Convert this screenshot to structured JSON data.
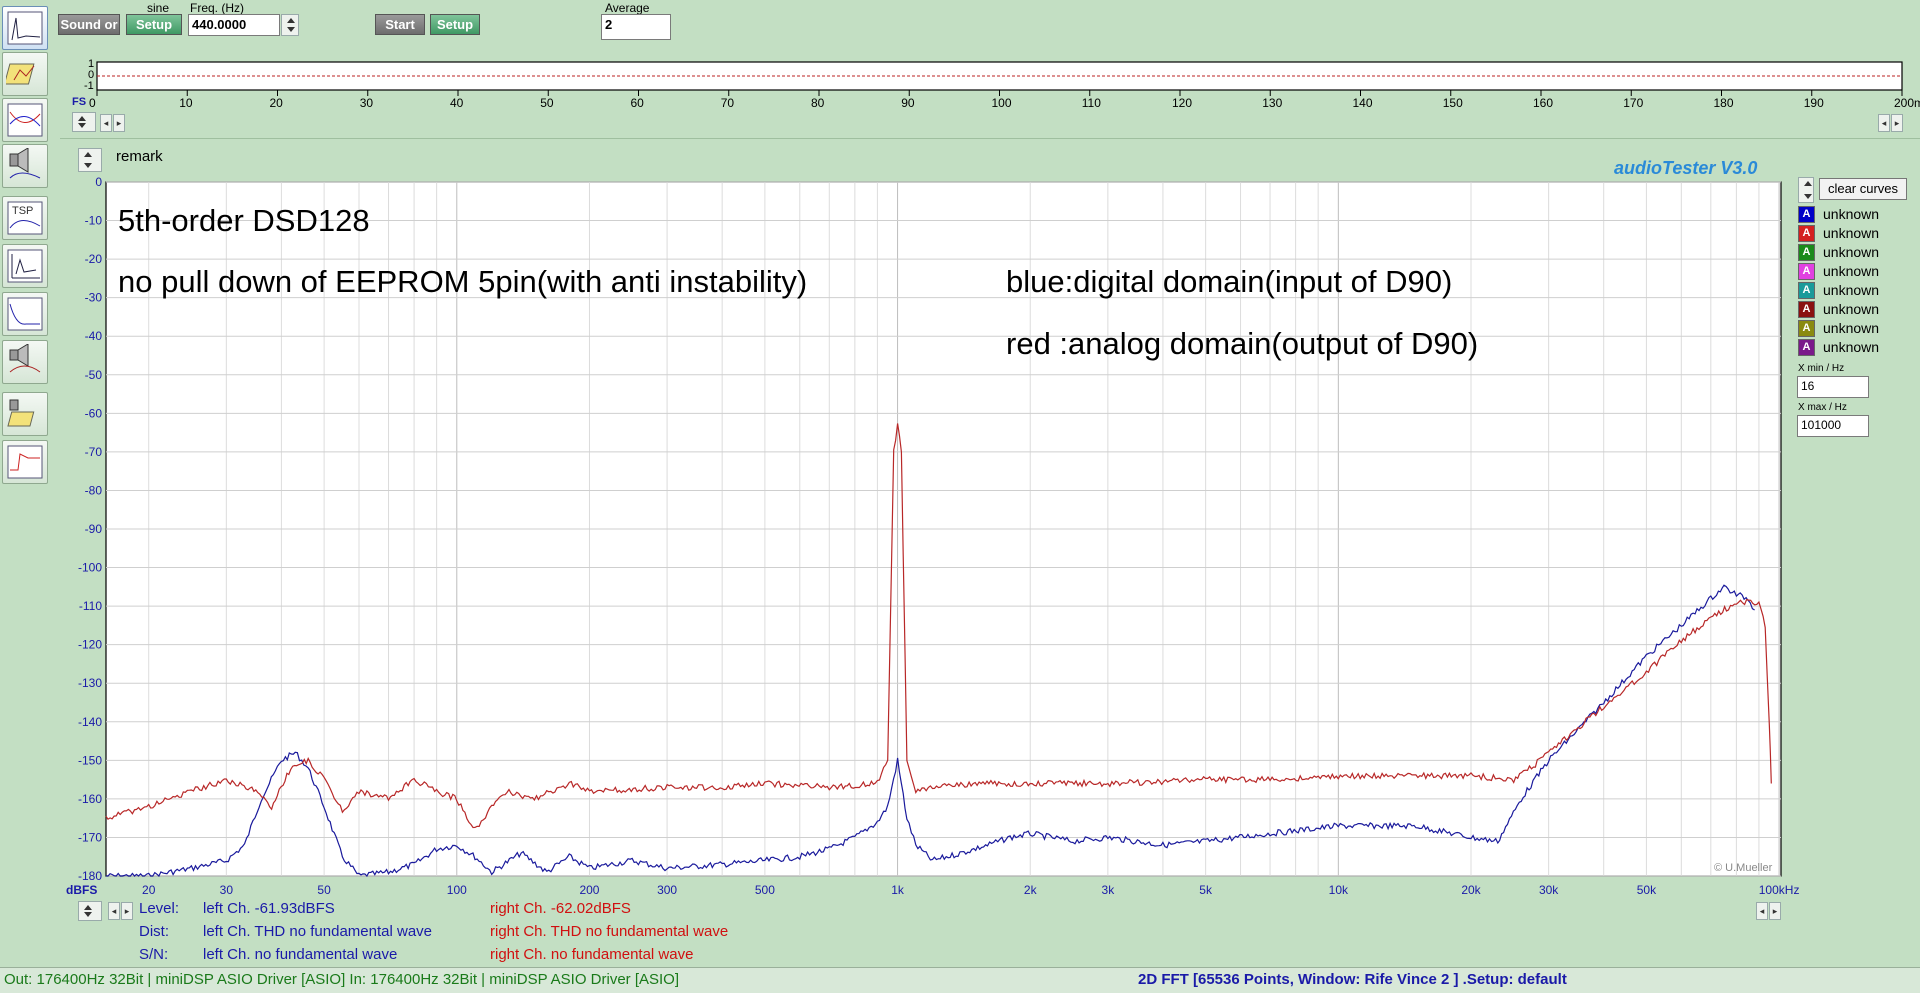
{
  "toolbar": {
    "sound_label": "Sound or",
    "setup_label": "Setup",
    "waveform_label": "sine",
    "freq_label": "Freq. (Hz)",
    "freq_value": "440.0000",
    "start_label": "Start",
    "setup2_label": "Setup",
    "average_label": "Average",
    "average_value": "2"
  },
  "scope": {
    "y_ticks": [
      "1",
      "0",
      "-1"
    ],
    "x_ticks": [
      "0",
      "10",
      "20",
      "30",
      "40",
      "50",
      "60",
      "70",
      "80",
      "90",
      "100",
      "110",
      "120",
      "130",
      "140",
      "150",
      "160",
      "170",
      "180",
      "190",
      "200ms"
    ],
    "fs_label": "FS"
  },
  "remark_label": "remark",
  "brand": "audioTester  V3.0",
  "copyright": "© U.Mueller",
  "annotations": {
    "line1": "5th-order DSD128",
    "line2": "no pull down of EEPROM 5pin(with anti instability)",
    "line3": "blue:digital domain(input of D90)",
    "line4": "red :analog domain(output of D90)"
  },
  "right_panel": {
    "clear_curves": "clear curves",
    "legend": [
      {
        "letter": "A",
        "label": "unknown",
        "color": "#0000c8"
      },
      {
        "letter": "A",
        "label": "unknown",
        "color": "#d42020"
      },
      {
        "letter": "A",
        "label": "unknown",
        "color": "#1a8a1a"
      },
      {
        "letter": "A",
        "label": "unknown",
        "color": "#e040e0"
      },
      {
        "letter": "A",
        "label": "unknown",
        "color": "#1a9a9a"
      },
      {
        "letter": "A",
        "label": "unknown",
        "color": "#8a1010"
      },
      {
        "letter": "A",
        "label": "unknown",
        "color": "#8a8a10"
      },
      {
        "letter": "A",
        "label": "unknown",
        "color": "#7a1a8a"
      }
    ],
    "xmin_label": "X min / Hz",
    "xmin_value": "16",
    "xmax_label": "X max / Hz",
    "xmax_value": "101000"
  },
  "chart_data": {
    "type": "line",
    "x_scale": "log",
    "xlim": [
      16,
      101000
    ],
    "ylim": [
      -180,
      0
    ],
    "y_unit_label": "dBFS",
    "y_ticks": [
      0,
      -10,
      -20,
      -30,
      -40,
      -50,
      -60,
      -70,
      -80,
      -90,
      -100,
      -110,
      -120,
      -130,
      -140,
      -150,
      -160,
      -170,
      -180
    ],
    "x_tick_labels": [
      {
        "v": 20,
        "t": "20"
      },
      {
        "v": 30,
        "t": "30"
      },
      {
        "v": 50,
        "t": "50"
      },
      {
        "v": 100,
        "t": "100"
      },
      {
        "v": 200,
        "t": "200"
      },
      {
        "v": 300,
        "t": "300"
      },
      {
        "v": 500,
        "t": "500"
      },
      {
        "v": 1000,
        "t": "1k"
      },
      {
        "v": 2000,
        "t": "2k"
      },
      {
        "v": 3000,
        "t": "3k"
      },
      {
        "v": 5000,
        "t": "5k"
      },
      {
        "v": 10000,
        "t": "10k"
      },
      {
        "v": 20000,
        "t": "20k"
      },
      {
        "v": 30000,
        "t": "30k"
      },
      {
        "v": 50000,
        "t": "50k"
      },
      {
        "v": 100000,
        "t": "100kHz"
      }
    ],
    "grid": true,
    "series": [
      {
        "color": "#1a1a9c",
        "points": [
          [
            16,
            -180
          ],
          [
            20,
            -180
          ],
          [
            25,
            -178
          ],
          [
            30,
            -176
          ],
          [
            33,
            -172
          ],
          [
            36,
            -160
          ],
          [
            40,
            -150
          ],
          [
            43,
            -148
          ],
          [
            46,
            -152
          ],
          [
            50,
            -162
          ],
          [
            55,
            -175
          ],
          [
            60,
            -180
          ],
          [
            70,
            -179
          ],
          [
            80,
            -177
          ],
          [
            90,
            -173
          ],
          [
            100,
            -172
          ],
          [
            110,
            -175
          ],
          [
            120,
            -179
          ],
          [
            140,
            -174
          ],
          [
            160,
            -179
          ],
          [
            180,
            -175
          ],
          [
            200,
            -178
          ],
          [
            250,
            -176
          ],
          [
            300,
            -178
          ],
          [
            400,
            -177
          ],
          [
            500,
            -176
          ],
          [
            600,
            -175
          ],
          [
            700,
            -173
          ],
          [
            800,
            -170
          ],
          [
            900,
            -166
          ],
          [
            950,
            -162
          ],
          [
            1000,
            -150
          ],
          [
            1050,
            -165
          ],
          [
            1100,
            -172
          ],
          [
            1200,
            -176
          ],
          [
            1400,
            -174
          ],
          [
            1600,
            -172
          ],
          [
            1800,
            -170
          ],
          [
            2000,
            -169
          ],
          [
            2500,
            -171
          ],
          [
            3000,
            -170
          ],
          [
            4000,
            -172
          ],
          [
            5000,
            -171
          ],
          [
            7000,
            -169
          ],
          [
            10000,
            -167
          ],
          [
            15000,
            -167
          ],
          [
            20000,
            -170
          ],
          [
            23000,
            -171
          ],
          [
            26000,
            -160
          ],
          [
            30000,
            -150
          ],
          [
            40000,
            -135
          ],
          [
            50000,
            -123
          ],
          [
            60000,
            -115
          ],
          [
            70000,
            -108
          ],
          [
            75000,
            -105
          ],
          [
            80000,
            -107
          ],
          [
            85000,
            -108
          ],
          [
            88000,
            -111
          ]
        ]
      },
      {
        "color": "#b82828",
        "points": [
          [
            16,
            -165
          ],
          [
            20,
            -162
          ],
          [
            25,
            -158
          ],
          [
            30,
            -155
          ],
          [
            35,
            -158
          ],
          [
            38,
            -162
          ],
          [
            42,
            -152
          ],
          [
            46,
            -150
          ],
          [
            50,
            -155
          ],
          [
            55,
            -163
          ],
          [
            60,
            -158
          ],
          [
            70,
            -160
          ],
          [
            80,
            -155
          ],
          [
            90,
            -158
          ],
          [
            100,
            -160
          ],
          [
            110,
            -168
          ],
          [
            120,
            -162
          ],
          [
            130,
            -158
          ],
          [
            150,
            -160
          ],
          [
            180,
            -156
          ],
          [
            200,
            -158
          ],
          [
            300,
            -157
          ],
          [
            400,
            -157
          ],
          [
            500,
            -156
          ],
          [
            700,
            -157
          ],
          [
            900,
            -156
          ],
          [
            950,
            -150
          ],
          [
            980,
            -70
          ],
          [
            1000,
            -63
          ],
          [
            1020,
            -70
          ],
          [
            1050,
            -150
          ],
          [
            1100,
            -158
          ],
          [
            1200,
            -157
          ],
          [
            1500,
            -156
          ],
          [
            2000,
            -156
          ],
          [
            3000,
            -156
          ],
          [
            5000,
            -155
          ],
          [
            7000,
            -155
          ],
          [
            10000,
            -154
          ],
          [
            15000,
            -154
          ],
          [
            20000,
            -154
          ],
          [
            25000,
            -155
          ],
          [
            28000,
            -151
          ],
          [
            30000,
            -148
          ],
          [
            40000,
            -136
          ],
          [
            50000,
            -127
          ],
          [
            60000,
            -119
          ],
          [
            70000,
            -113
          ],
          [
            80000,
            -109
          ],
          [
            90000,
            -109
          ],
          [
            93000,
            -115
          ],
          [
            95000,
            -140
          ],
          [
            96000,
            -156
          ]
        ]
      }
    ]
  },
  "readout": {
    "level_label": "Level:",
    "level_left": "left Ch. -61.93dBFS",
    "level_right": "right Ch. -62.02dBFS",
    "dist_label": "Dist:",
    "dist_left": "left Ch. THD no fundamental wave",
    "dist_right": "right Ch. THD no fundamental wave",
    "sn_label": "S/N:",
    "sn_left": "left Ch.  no fundamental wave",
    "sn_right": "right Ch.  no fundamental wave"
  },
  "statusbar": {
    "left": "Out: 176400Hz 32Bit  | miniDSP ASIO Driver [ASIO]  In: 176400Hz 32Bit  | miniDSP ASIO Driver [ASIO]",
    "center": "2D FFT [65536 Points, Window: Rife Vince 2 ]  .Setup:  default"
  },
  "colors": {
    "background": "#c3dfc3",
    "brand": "#2a8ad8",
    "readout_blue": "#1a1aa8",
    "readout_red": "#d01010"
  }
}
